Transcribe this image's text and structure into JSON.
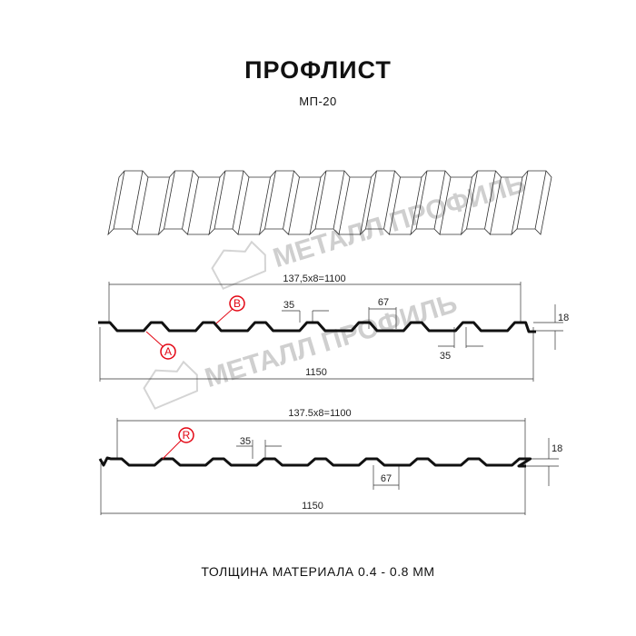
{
  "header": {
    "title": "ПРОФЛИСТ",
    "model": "МП-20"
  },
  "watermark": {
    "text": "МЕТАЛЛ ПРОФИЛЬ",
    "color": "#cfcfcf"
  },
  "profile_top": {
    "pitch_dim": "137,5х8=1100",
    "width_dim": "1150",
    "rib_top_dim": "35",
    "rib_bottom_dim": "35",
    "gap_dim": "67",
    "height_dim": "18",
    "markers": [
      "B",
      "A"
    ]
  },
  "profile_bottom": {
    "pitch_dim": "137.5x8=1100",
    "width_dim": "1150",
    "rib_top_dim": "35",
    "gap_dim": "67",
    "height_dim": "18",
    "markers": [
      "R"
    ]
  },
  "footer": {
    "thickness": "ТОЛЩИНА МАТЕРИАЛА 0.4 - 0.8 ММ"
  },
  "colors": {
    "marker": "#e30613",
    "line": "#111111"
  }
}
